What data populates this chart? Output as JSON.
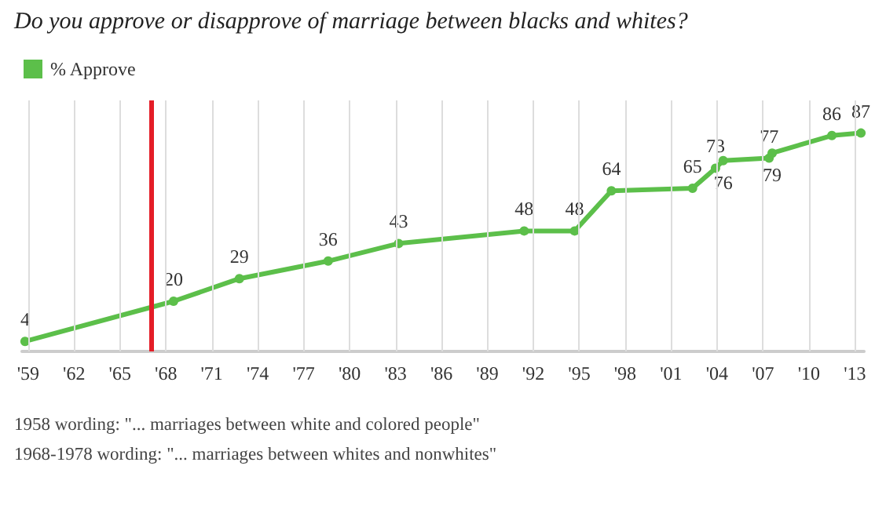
{
  "chart_data": {
    "type": "line",
    "title": "Do you approve or disapprove of marriage between blacks and whites?",
    "x": [
      1958.8,
      1968.5,
      1972.8,
      1978.6,
      1983.2,
      1991.4,
      1994.7,
      1997.1,
      2002.4,
      2003.9,
      2004.4,
      2007.4,
      2007.6,
      2011.5,
      2013.4
    ],
    "series": [
      {
        "name": "% Approve",
        "color": "#5cbf4a",
        "values": [
          4,
          20,
          29,
          36,
          43,
          48,
          48,
          64,
          65,
          73,
          76,
          77,
          79,
          86,
          87
        ]
      }
    ],
    "xlim": [
      1958.6,
      2013.6
    ],
    "xticks": [
      {
        "value": 1959,
        "label": "'59"
      },
      {
        "value": 1962,
        "label": "'62"
      },
      {
        "value": 1965,
        "label": "'65"
      },
      {
        "value": 1968,
        "label": "'68"
      },
      {
        "value": 1971,
        "label": "'71"
      },
      {
        "value": 1974,
        "label": "'74"
      },
      {
        "value": 1977,
        "label": "'77"
      },
      {
        "value": 1980,
        "label": "'80"
      },
      {
        "value": 1983,
        "label": "'83"
      },
      {
        "value": 1986,
        "label": "'86"
      },
      {
        "value": 1989,
        "label": "'89"
      },
      {
        "value": 1992,
        "label": "'92"
      },
      {
        "value": 1995,
        "label": "'95"
      },
      {
        "value": 1998,
        "label": "'98"
      },
      {
        "value": 2001,
        "label": "'01"
      },
      {
        "value": 2004,
        "label": "'04"
      },
      {
        "value": 2007,
        "label": "'07"
      },
      {
        "value": 2010,
        "label": "'10"
      },
      {
        "value": 2013,
        "label": "'13"
      }
    ],
    "ref_lines": [
      {
        "axis": "x",
        "value": 1967,
        "color": "#e41d27"
      }
    ],
    "annotations": [
      "1958 wording: \"... marriages between white and colored people\"",
      "1968-1978 wording: \"... marriages between whites and nonwhites\""
    ],
    "data_labels": true,
    "grid": "x",
    "legend": "top left",
    "marker": "circle",
    "line_style": "solid",
    "tick_labels": "x"
  }
}
